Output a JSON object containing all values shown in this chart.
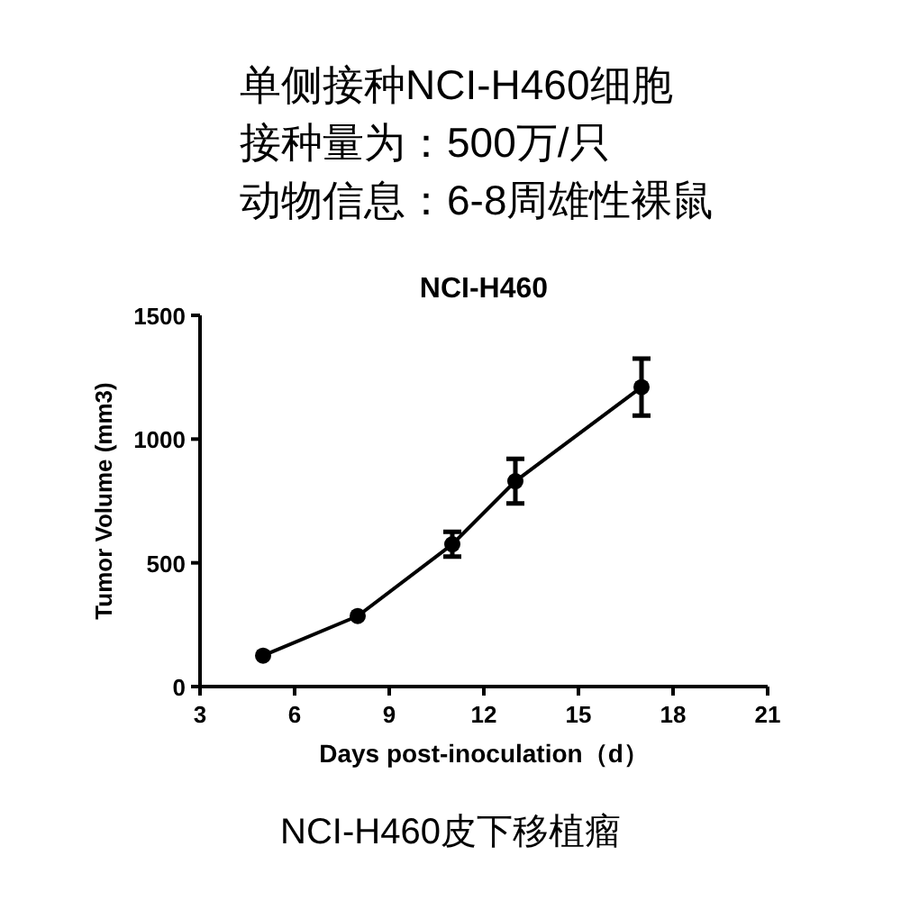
{
  "chart_data": {
    "type": "line",
    "title": "NCI-H460",
    "xlabel": "Days post-inoculation（d）",
    "ylabel": "Tumor Volume (mm3)",
    "annotations": [
      "单侧接种NCI-H460细胞",
      "接种量为：500万/只",
      "动物信息：6-8周雄性裸鼠",
      "NCI-H460皮下移植瘤"
    ],
    "x": [
      5,
      8,
      11,
      13,
      17
    ],
    "series": [
      {
        "color": "#000000",
        "values": [
          125,
          285,
          575,
          830,
          1210
        ],
        "errors": [
          null,
          null,
          50,
          90,
          115
        ]
      }
    ],
    "marker": "circle",
    "xlim": [
      3,
      21
    ],
    "ylim": [
      0,
      1500
    ],
    "xticks": [
      3,
      6,
      9,
      12,
      15,
      18,
      21
    ],
    "yticks": [
      0,
      500,
      1000,
      1500
    ]
  }
}
